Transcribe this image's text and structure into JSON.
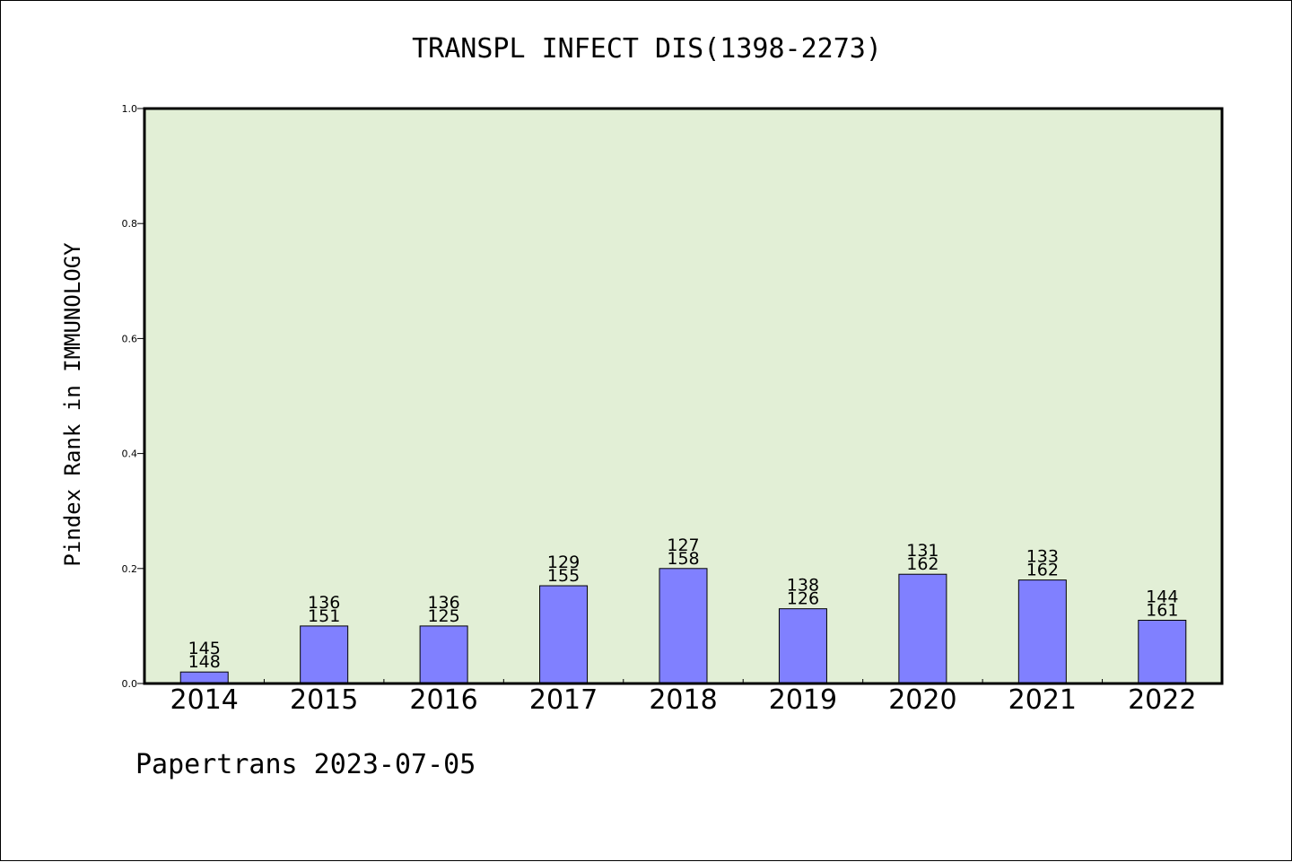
{
  "chart_data": {
    "type": "bar",
    "title": "TRANSPL INFECT DIS(1398-2273)",
    "ylabel": "Pindex Rank in IMMUNOLOGY",
    "xlabel": "",
    "categories": [
      "2014",
      "2015",
      "2016",
      "2017",
      "2018",
      "2019",
      "2020",
      "2021",
      "2022"
    ],
    "values": [
      0.02,
      0.1,
      0.1,
      0.17,
      0.2,
      0.13,
      0.19,
      0.18,
      0.11
    ],
    "labels_top": [
      "145",
      "136",
      "136",
      "129",
      "127",
      "138",
      "131",
      "133",
      "144"
    ],
    "labels_bottom": [
      "148",
      "151",
      "125",
      "155",
      "158",
      "126",
      "162",
      "162",
      "161"
    ],
    "ylim": [
      0.0,
      1.0
    ],
    "yticks": [
      "0.0",
      "0.2",
      "0.4",
      "0.6",
      "0.8",
      "1.0"
    ],
    "grid": false,
    "plot_background": "#e2efd6",
    "bar_color": "#8080ff"
  },
  "footer": "Papertrans 2023-07-05"
}
